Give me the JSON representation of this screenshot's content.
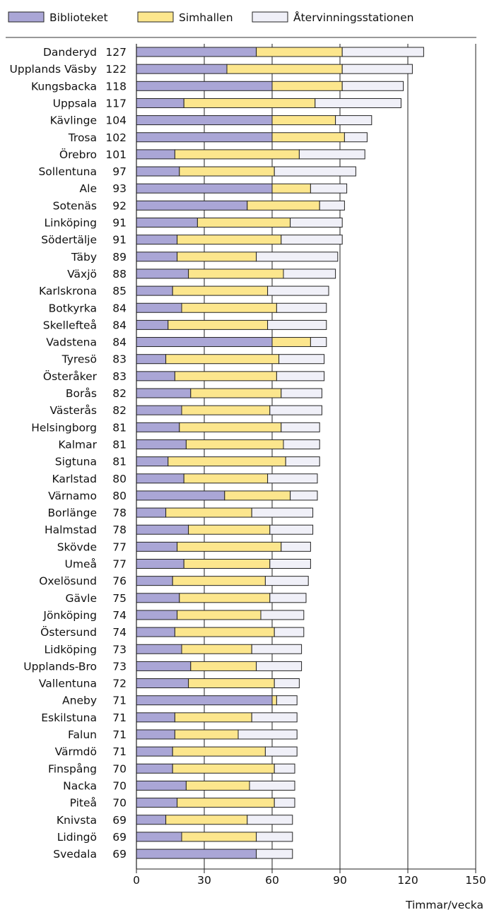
{
  "chart_data": {
    "type": "bar",
    "orientation": "horizontal",
    "stacked": true,
    "xlabel": "Timmar/vecka",
    "xlim": [
      0,
      150
    ],
    "xticks": [
      0,
      30,
      60,
      90,
      120,
      150
    ],
    "grid": "vertical",
    "legend_position": "top",
    "colors": {
      "Biblioteket": "#aaa6d6",
      "Simhallen": "#fce68d",
      "Återvinningsstationen": "#f0f0f8"
    },
    "categories": [
      "Danderyd",
      "Upplands Väsby",
      "Kungsbacka",
      "Uppsala",
      "Kävlinge",
      "Trosa",
      "Örebro",
      "Sollentuna",
      "Ale",
      "Sotenäs",
      "Linköping",
      "Södertälje",
      "Täby",
      "Växjö",
      "Karlskrona",
      "Botkyrka",
      "Skellefteå",
      "Vadstena",
      "Tyresö",
      "Österåker",
      "Borås",
      "Västerås",
      "Helsingborg",
      "Kalmar",
      "Sigtuna",
      "Karlstad",
      "Värnamo",
      "Borlänge",
      "Halmstad",
      "Skövde",
      "Umeå",
      "Oxelösund",
      "Gävle",
      "Jönköping",
      "Östersund",
      "Lidköping",
      "Upplands-Bro",
      "Vallentuna",
      "Aneby",
      "Eskilstuna",
      "Falun",
      "Värmdö",
      "Finspång",
      "Nacka",
      "Piteå",
      "Knivsta",
      "Lidingö",
      "Svedala"
    ],
    "totals": [
      127,
      122,
      118,
      117,
      104,
      102,
      101,
      97,
      93,
      92,
      91,
      91,
      89,
      88,
      85,
      84,
      84,
      84,
      83,
      83,
      82,
      82,
      81,
      81,
      81,
      80,
      80,
      78,
      78,
      77,
      77,
      76,
      75,
      74,
      74,
      73,
      73,
      72,
      71,
      71,
      71,
      71,
      70,
      70,
      70,
      69,
      69,
      69
    ],
    "series": [
      {
        "name": "Biblioteket",
        "values": [
          53,
          40,
          60,
          21,
          60,
          60,
          17,
          19,
          60,
          49,
          27,
          18,
          18,
          23,
          16,
          20,
          14,
          60,
          13,
          17,
          24,
          20,
          19,
          22,
          14,
          21,
          39,
          13,
          23,
          18,
          21,
          16,
          19,
          18,
          17,
          20,
          24,
          23,
          60,
          17,
          17,
          16,
          16,
          22,
          18,
          13,
          20,
          53
        ]
      },
      {
        "name": "Simhallen",
        "values": [
          38,
          51,
          31,
          58,
          28,
          32,
          55,
          42,
          17,
          32,
          41,
          46,
          35,
          42,
          42,
          42,
          44,
          17,
          50,
          45,
          40,
          39,
          45,
          43,
          52,
          37,
          29,
          38,
          36,
          46,
          38,
          41,
          40,
          37,
          44,
          31,
          29,
          38,
          2,
          34,
          28,
          41,
          45,
          28,
          43,
          36,
          33,
          0
        ]
      },
      {
        "name": "Återvinningsstationen",
        "values": [
          36,
          31,
          27,
          38,
          16,
          10,
          29,
          36,
          16,
          11,
          23,
          27,
          36,
          23,
          27,
          22,
          26,
          7,
          20,
          21,
          18,
          23,
          17,
          16,
          15,
          22,
          12,
          27,
          19,
          13,
          18,
          19,
          16,
          19,
          13,
          22,
          20,
          11,
          9,
          20,
          26,
          14,
          9,
          20,
          9,
          20,
          16,
          16
        ]
      }
    ]
  }
}
